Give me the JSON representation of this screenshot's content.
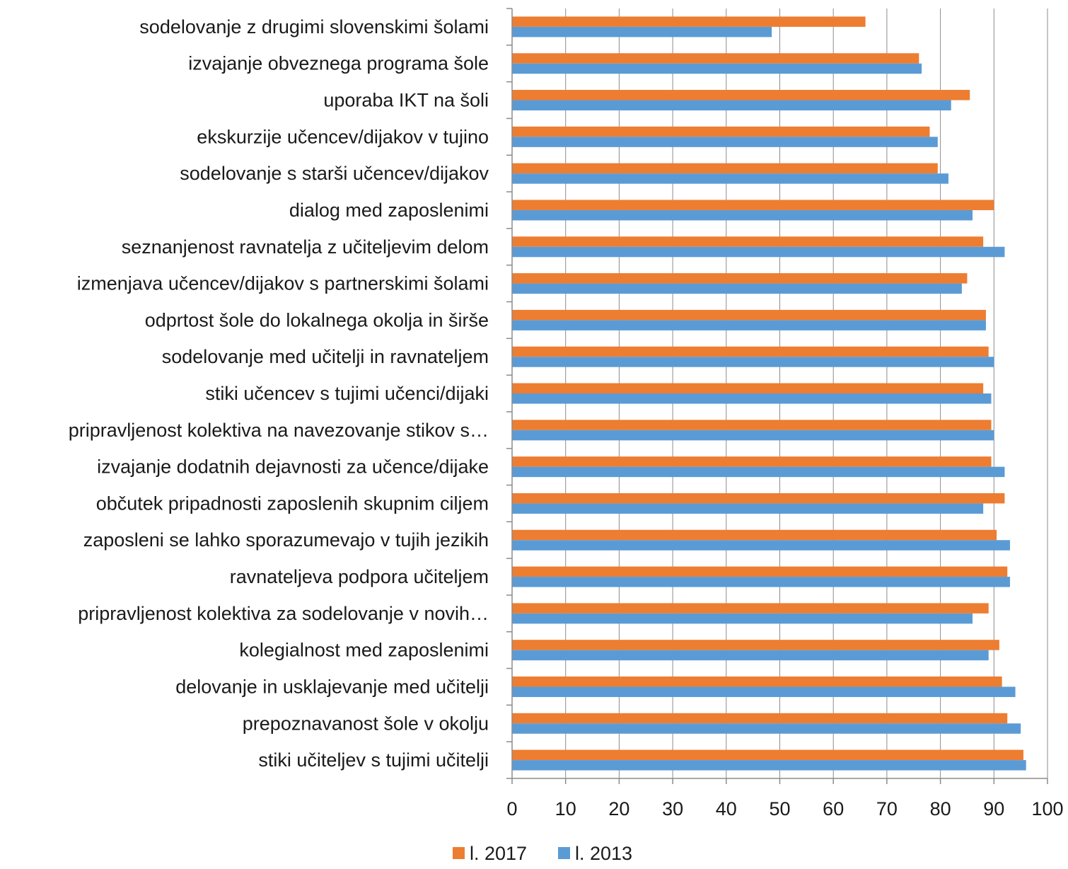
{
  "chart_data": {
    "type": "bar",
    "orientation": "horizontal",
    "title": "",
    "xlabel": "",
    "ylabel": "",
    "xlim": [
      0,
      100
    ],
    "x_ticks": [
      "0",
      "10",
      "20",
      "30",
      "40",
      "50",
      "60",
      "70",
      "80",
      "90",
      "100"
    ],
    "grid": true,
    "legend_position": "bottom",
    "categories": [
      "sodelovanje z drugimi slovenskimi šolami",
      "izvajanje obveznega programa šole",
      "uporaba IKT na šoli",
      "ekskurzije učencev/dijakov v tujino",
      "sodelovanje s starši učencev/dijakov",
      "dialog med zaposlenimi",
      "seznanjenost ravnatelja z učiteljevim delom",
      "izmenjava učencev/dijakov s partnerskimi šolami",
      "odprtost šole do lokalnega okolja in širše",
      "sodelovanje med učitelji in ravnateljem",
      "stiki učencev s tujimi učenci/dijaki",
      "pripravljenost kolektiva na navezovanje stikov s…",
      "izvajanje dodatnih dejavnosti za učence/dijake",
      "občutek pripadnosti zaposlenih skupnim ciljem",
      "zaposleni se lahko sporazumevajo v tujih jezikih",
      "ravnateljeva podpora učiteljem",
      "pripravljenost kolektiva za sodelovanje v novih…",
      "kolegialnost med zaposlenimi",
      "delovanje in usklajevanje med učitelji",
      "prepoznavanost šole v okolju",
      "stiki učiteljev s tujimi učitelji"
    ],
    "series": [
      {
        "name": "l. 2017",
        "color": "#ed7d31",
        "values": [
          66,
          76,
          85.5,
          78,
          79.5,
          90,
          88,
          85,
          88.5,
          89,
          88,
          89.5,
          89.5,
          92,
          90.5,
          92.5,
          89,
          91,
          91.5,
          92.5,
          95.5
        ]
      },
      {
        "name": "l. 2013",
        "color": "#5b9bd5",
        "values": [
          48.5,
          76.5,
          82,
          79.5,
          81.5,
          86,
          92,
          84,
          88.5,
          90,
          89.5,
          90,
          92,
          88,
          93,
          93,
          86,
          89,
          94,
          95,
          96
        ]
      }
    ]
  }
}
